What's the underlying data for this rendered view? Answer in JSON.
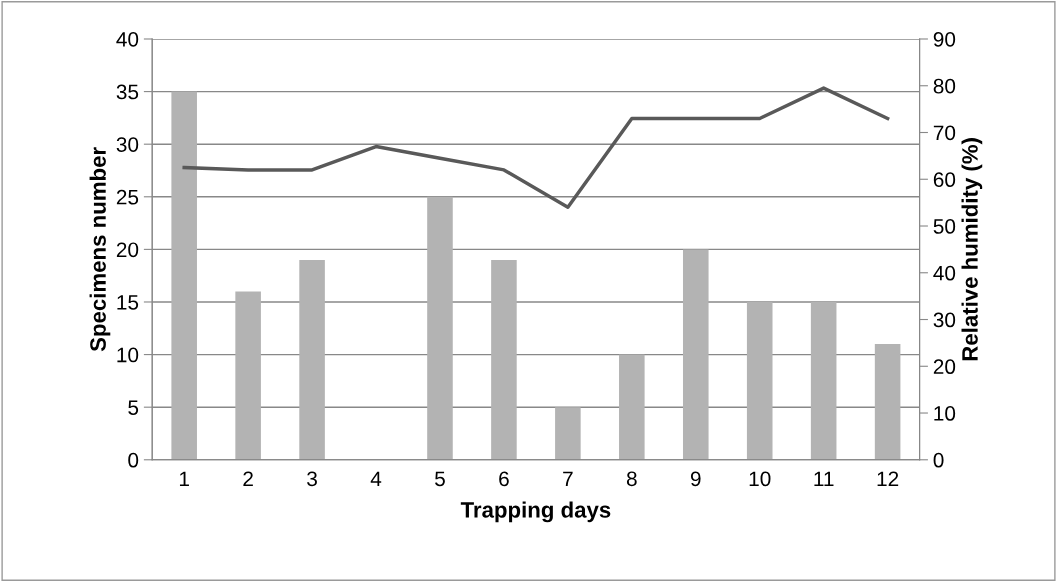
{
  "chart_data": {
    "type": "bar",
    "xlabel": "Trapping days",
    "ylabel": "Specimens number",
    "y2label": "Relative humidity (%)",
    "categories": [
      "1",
      "2",
      "3",
      "4",
      "5",
      "6",
      "7",
      "8",
      "9",
      "10",
      "11",
      "12"
    ],
    "series": [
      {
        "color": "#b3b3b3",
        "values": [
          35,
          16,
          19,
          0,
          25,
          19,
          5,
          10,
          20,
          15,
          15,
          11
        ]
      },
      {
        "type": "line",
        "axis": "y2",
        "color": "#595959",
        "values": [
          62.5,
          62,
          62,
          67,
          64.5,
          62,
          54,
          73,
          73,
          73,
          79.5,
          73
        ]
      }
    ],
    "ylim": [
      0,
      40
    ],
    "yticks": [
      0,
      5,
      10,
      15,
      20,
      25,
      30,
      35,
      40
    ],
    "y2lim": [
      0,
      90
    ],
    "y2ticks": [
      0,
      10,
      20,
      30,
      40,
      50,
      60,
      70,
      80,
      90
    ],
    "grid": "y",
    "marker": "none",
    "line_style": "solid"
  }
}
